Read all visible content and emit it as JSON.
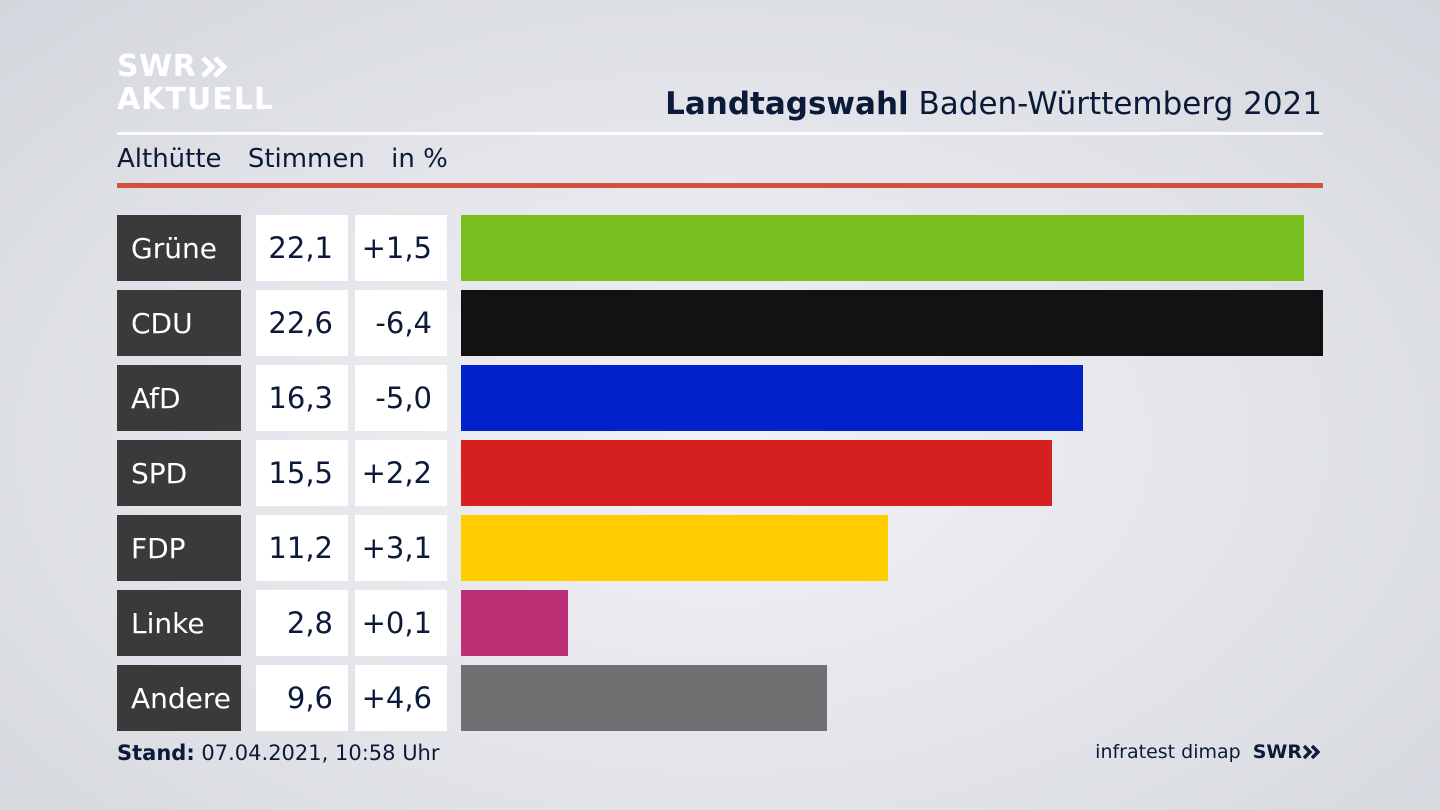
{
  "logo": {
    "line1": "SWR",
    "line2": "AKTUELL",
    "color": "#ffffff"
  },
  "title": {
    "bold": "Landtagswahl",
    "regular": "Baden-Württemberg 2021"
  },
  "subtitle": {
    "place": "Althütte",
    "measure": "Stimmen",
    "unit": "in %"
  },
  "footer": {
    "stand_label": "Stand:",
    "stand_value": "07.04.2021, 10:58 Uhr",
    "source": "infratest dimap",
    "source_logo": "SWR"
  },
  "chart_data": {
    "type": "bar",
    "orientation": "horizontal",
    "categories": [
      "Grüne",
      "CDU",
      "AfD",
      "SPD",
      "FDP",
      "Linke",
      "Andere"
    ],
    "values": [
      22.1,
      22.6,
      16.3,
      15.5,
      11.2,
      2.8,
      9.6
    ],
    "value_labels": [
      "22,1",
      "22,6",
      "16,3",
      "15,5",
      "11,2",
      "2,8",
      "9,6"
    ],
    "diffs": [
      1.5,
      -6.4,
      -5.0,
      2.2,
      3.1,
      0.1,
      4.6
    ],
    "diff_labels": [
      "+1,5",
      "-6,4",
      "-5,0",
      "+2,2",
      "+3,1",
      "+0,1",
      "+4,6"
    ],
    "colors": [
      "#78be1e",
      "#121212",
      "#0021cc",
      "#d61f1f",
      "#ffcc00",
      "#be3075",
      "#6f7072"
    ],
    "xlim": [
      0,
      22.6
    ],
    "grid": false
  }
}
